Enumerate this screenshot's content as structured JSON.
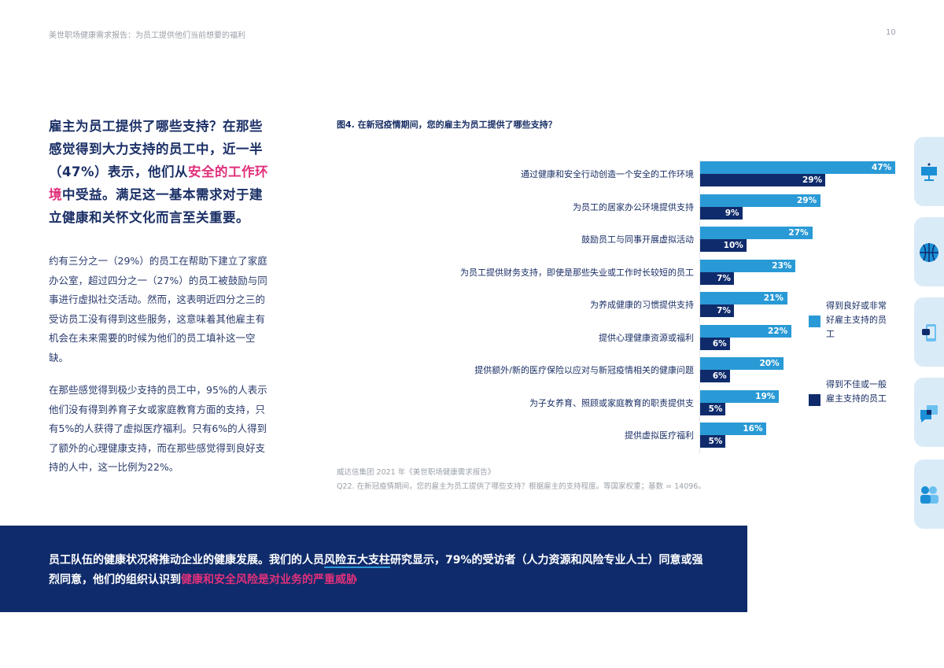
{
  "header": {
    "running_title": "美世职场健康需求报告：为员工提供他们当前想要的福利",
    "page_number": "10"
  },
  "lead": {
    "before": "雇主为员工提供了哪些支持？在那些感觉得到大力支持的员工中，近一半（47%）表示，他们从",
    "highlight": "安全的工作环境",
    "after": "中受益。满足这一基本需求对于建立健康和关怀文化而言至关重要。"
  },
  "paragraphs": [
    "约有三分之一（29%）的员工在帮助下建立了家庭办公室，超过四分之一（27%）的员工被鼓励与同事进行虚拟社交活动。然而，这表明近四分之三的受访员工没有得到这些服务，这意味着其他雇主有机会在未来需要的时候为他们的员工填补这一空缺。",
    "在那些感觉得到极少支持的员工中，95%的人表示他们没有得到养育子女或家庭教育方面的支持，只有5%的人获得了虚拟医疗福利。只有6%的人得到了额外的心理健康支持，而在那些感觉得到良好支持的人中，这一比例为22%。"
  ],
  "figure": {
    "title": "图4. 在新冠疫情期间，您的雇主为员工提供了哪些支持？",
    "source_line1": "威达信集团 2021 年《美世职场健康需求报告》",
    "source_line2": "Q22. 在新冠疫情期间，您的雇主为员工提供了哪些支持？根据雇主的支持程度。等国家权重；基数 = 14096。"
  },
  "chart_data": {
    "type": "bar",
    "orientation": "horizontal",
    "title": "图4. 在新冠疫情期间，您的雇主为员工提供了哪些支持？",
    "xlabel": "",
    "ylabel": "",
    "xlim": [
      0,
      50
    ],
    "grid": false,
    "legend_position": "right",
    "categories": [
      "通过健康和安全行动创造一个安全的工作环境",
      "为员工的居家办公环境提供支持",
      "鼓励员工与同事开展虚拟活动",
      "为员工提供财务支持，即使是那些失业或工作时长较短的员工",
      "为养成健康的习惯提供支持",
      "提供心理健康资源或福利",
      "提供额外/新的医疗保险以应对与新冠疫情相关的健康问题",
      "为子女养育、照顾或家庭教育的职责提供支",
      "提供虚拟医疗福利"
    ],
    "series": [
      {
        "name": "得到良好或非常好雇主支持的员工",
        "color": "#2a9ad6",
        "values": [
          47,
          29,
          27,
          23,
          21,
          22,
          20,
          19,
          16
        ]
      },
      {
        "name": "得到不佳或一般雇主支持的员工",
        "color": "#0f2b6b",
        "values": [
          29,
          9,
          10,
          7,
          7,
          6,
          6,
          5,
          5
        ]
      }
    ],
    "value_labels": {
      "good": [
        "47%",
        "29%",
        "27%",
        "23%",
        "21%",
        "22%",
        "20%",
        "19%",
        "16%"
      ],
      "poor": [
        "29%",
        "9%",
        "10%",
        "7%",
        "7%",
        "6%",
        "6%",
        "5%",
        "5%"
      ]
    }
  },
  "legend": {
    "good": "得到良好或非常好雇主支持的员工",
    "poor": "得到不佳或一般雇主支持的员工"
  },
  "callout": {
    "part1": "员工队伍的健康状况将推动企业的健康发展。我们的人员",
    "underlined": "风险五大支柱",
    "part2": "研究显示，79%的受访者（人力资源和风险专业人士）同意或强烈同意，他们的组织认识到",
    "highlight": "健康和安全风险是对业务的严重威胁"
  },
  "side_tabs": [
    {
      "icon": "presentation-board-icon"
    },
    {
      "icon": "basketball-icon"
    },
    {
      "icon": "mobile-chat-icon"
    },
    {
      "icon": "speech-bubbles-icon"
    },
    {
      "icon": "people-icon"
    }
  ],
  "colors": {
    "navy": "#0f2b6b",
    "blue": "#2a9ad6",
    "pink": "#e0307a",
    "tab_bg": "#daebf8"
  }
}
